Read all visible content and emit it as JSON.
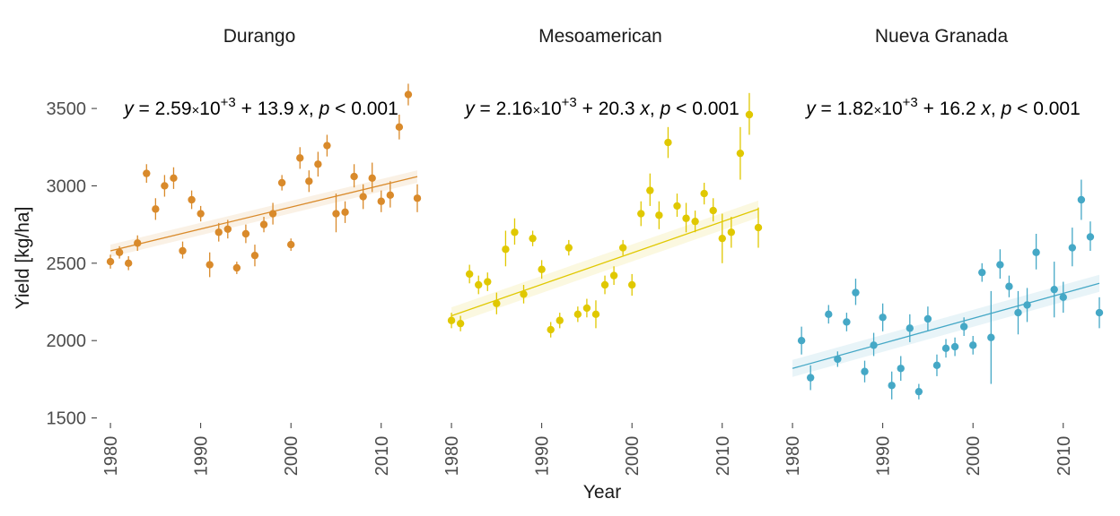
{
  "chart_data": {
    "type": "scatter",
    "layout": "faceted",
    "xlabel": "Year",
    "ylabel": "Yield [kg/ha]",
    "xlim": [
      1979,
      2014
    ],
    "ylim": [
      1480,
      3680
    ],
    "xticks": [
      1980,
      1990,
      2000,
      2010
    ],
    "yticks": [
      1500,
      2000,
      2500,
      3000,
      3500
    ],
    "grid": false,
    "error_bars": true,
    "regression": "linear with confidence band",
    "panels": [
      {
        "name": "Durango",
        "color": "#D98A2B",
        "equation": {
          "intercept_mantissa": "2.59",
          "exponent": "+3",
          "slope": "13.9",
          "p_text": "0.001"
        },
        "fit": {
          "x": [
            1980,
            2014
          ],
          "y": [
            2580,
            3060
          ],
          "band": 40
        },
        "points": [
          {
            "x": 1980,
            "y": 2510,
            "lo": 2465,
            "hi": 2555
          },
          {
            "x": 1981,
            "y": 2570,
            "lo": 2530,
            "hi": 2610
          },
          {
            "x": 1982,
            "y": 2500,
            "lo": 2455,
            "hi": 2545
          },
          {
            "x": 1983,
            "y": 2630,
            "lo": 2580,
            "hi": 2680
          },
          {
            "x": 1984,
            "y": 3080,
            "lo": 3020,
            "hi": 3140
          },
          {
            "x": 1985,
            "y": 2850,
            "lo": 2780,
            "hi": 2920
          },
          {
            "x": 1986,
            "y": 3000,
            "lo": 2930,
            "hi": 3070
          },
          {
            "x": 1987,
            "y": 3050,
            "lo": 2980,
            "hi": 3120
          },
          {
            "x": 1988,
            "y": 2580,
            "lo": 2530,
            "hi": 2640
          },
          {
            "x": 1989,
            "y": 2910,
            "lo": 2850,
            "hi": 2970
          },
          {
            "x": 1990,
            "y": 2820,
            "lo": 2770,
            "hi": 2870
          },
          {
            "x": 1991,
            "y": 2490,
            "lo": 2410,
            "hi": 2570
          },
          {
            "x": 1992,
            "y": 2700,
            "lo": 2640,
            "hi": 2760
          },
          {
            "x": 1993,
            "y": 2720,
            "lo": 2660,
            "hi": 2780
          },
          {
            "x": 1994,
            "y": 2470,
            "lo": 2430,
            "hi": 2510
          },
          {
            "x": 1995,
            "y": 2690,
            "lo": 2630,
            "hi": 2750
          },
          {
            "x": 1996,
            "y": 2550,
            "lo": 2480,
            "hi": 2620
          },
          {
            "x": 1997,
            "y": 2750,
            "lo": 2700,
            "hi": 2800
          },
          {
            "x": 1998,
            "y": 2820,
            "lo": 2750,
            "hi": 2890
          },
          {
            "x": 1999,
            "y": 3020,
            "lo": 2970,
            "hi": 3070
          },
          {
            "x": 2000,
            "y": 2620,
            "lo": 2580,
            "hi": 2660
          },
          {
            "x": 2001,
            "y": 3180,
            "lo": 3110,
            "hi": 3250
          },
          {
            "x": 2002,
            "y": 3030,
            "lo": 2960,
            "hi": 3100
          },
          {
            "x": 2003,
            "y": 3140,
            "lo": 3060,
            "hi": 3220
          },
          {
            "x": 2004,
            "y": 3260,
            "lo": 3190,
            "hi": 3330
          },
          {
            "x": 2005,
            "y": 2820,
            "lo": 2700,
            "hi": 2950
          },
          {
            "x": 2006,
            "y": 2830,
            "lo": 2760,
            "hi": 2900
          },
          {
            "x": 2007,
            "y": 3060,
            "lo": 2990,
            "hi": 3140
          },
          {
            "x": 2008,
            "y": 2930,
            "lo": 2850,
            "hi": 3010
          },
          {
            "x": 2009,
            "y": 3050,
            "lo": 2960,
            "hi": 3150
          },
          {
            "x": 2010,
            "y": 2900,
            "lo": 2830,
            "hi": 2970
          },
          {
            "x": 2011,
            "y": 2940,
            "lo": 2860,
            "hi": 3030
          },
          {
            "x": 2012,
            "y": 3380,
            "lo": 3300,
            "hi": 3460
          },
          {
            "x": 2013,
            "y": 3590,
            "lo": 3520,
            "hi": 3660
          },
          {
            "x": 2014,
            "y": 2920,
            "lo": 2830,
            "hi": 3010
          }
        ]
      },
      {
        "name": "Mesoamerican",
        "color": "#E0C800",
        "equation": {
          "intercept_mantissa": "2.16",
          "exponent": "+3",
          "slope": "20.3",
          "p_text": "0.001"
        },
        "fit": {
          "x": [
            1980,
            2014
          ],
          "y": [
            2160,
            2850
          ],
          "band": 55
        },
        "points": [
          {
            "x": 1980,
            "y": 2130,
            "lo": 2080,
            "hi": 2180
          },
          {
            "x": 1981,
            "y": 2110,
            "lo": 2060,
            "hi": 2160
          },
          {
            "x": 1982,
            "y": 2430,
            "lo": 2370,
            "hi": 2490
          },
          {
            "x": 1983,
            "y": 2360,
            "lo": 2300,
            "hi": 2420
          },
          {
            "x": 1984,
            "y": 2380,
            "lo": 2320,
            "hi": 2440
          },
          {
            "x": 1985,
            "y": 2240,
            "lo": 2170,
            "hi": 2310
          },
          {
            "x": 1986,
            "y": 2590,
            "lo": 2480,
            "hi": 2710
          },
          {
            "x": 1987,
            "y": 2700,
            "lo": 2620,
            "hi": 2790
          },
          {
            "x": 1988,
            "y": 2300,
            "lo": 2240,
            "hi": 2360
          },
          {
            "x": 1989,
            "y": 2660,
            "lo": 2610,
            "hi": 2710
          },
          {
            "x": 1990,
            "y": 2460,
            "lo": 2400,
            "hi": 2520
          },
          {
            "x": 1991,
            "y": 2070,
            "lo": 2020,
            "hi": 2120
          },
          {
            "x": 1992,
            "y": 2130,
            "lo": 2080,
            "hi": 2180
          },
          {
            "x": 1993,
            "y": 2600,
            "lo": 2550,
            "hi": 2650
          },
          {
            "x": 1994,
            "y": 2170,
            "lo": 2120,
            "hi": 2220
          },
          {
            "x": 1995,
            "y": 2210,
            "lo": 2150,
            "hi": 2270
          },
          {
            "x": 1996,
            "y": 2170,
            "lo": 2080,
            "hi": 2260
          },
          {
            "x": 1997,
            "y": 2360,
            "lo": 2300,
            "hi": 2420
          },
          {
            "x": 1998,
            "y": 2420,
            "lo": 2360,
            "hi": 2480
          },
          {
            "x": 1999,
            "y": 2600,
            "lo": 2550,
            "hi": 2650
          },
          {
            "x": 2000,
            "y": 2360,
            "lo": 2290,
            "hi": 2430
          },
          {
            "x": 2001,
            "y": 2820,
            "lo": 2740,
            "hi": 2900
          },
          {
            "x": 2002,
            "y": 2970,
            "lo": 2870,
            "hi": 3080
          },
          {
            "x": 2003,
            "y": 2810,
            "lo": 2720,
            "hi": 2900
          },
          {
            "x": 2004,
            "y": 3280,
            "lo": 3180,
            "hi": 3380
          },
          {
            "x": 2005,
            "y": 2870,
            "lo": 2800,
            "hi": 2950
          },
          {
            "x": 2006,
            "y": 2790,
            "lo": 2700,
            "hi": 2890
          },
          {
            "x": 2007,
            "y": 2770,
            "lo": 2700,
            "hi": 2840
          },
          {
            "x": 2008,
            "y": 2950,
            "lo": 2880,
            "hi": 3020
          },
          {
            "x": 2009,
            "y": 2840,
            "lo": 2770,
            "hi": 2920
          },
          {
            "x": 2010,
            "y": 2660,
            "lo": 2500,
            "hi": 2820
          },
          {
            "x": 2011,
            "y": 2700,
            "lo": 2600,
            "hi": 2800
          },
          {
            "x": 2012,
            "y": 3210,
            "lo": 3040,
            "hi": 3380
          },
          {
            "x": 2013,
            "y": 3460,
            "lo": 3330,
            "hi": 3600
          },
          {
            "x": 2014,
            "y": 2730,
            "lo": 2600,
            "hi": 2860
          }
        ]
      },
      {
        "name": "Nueva Granada",
        "color": "#45A8C6",
        "equation": {
          "intercept_mantissa": "1.82",
          "exponent": "+3",
          "slope": "16.2",
          "p_text": "0.001"
        },
        "fit": {
          "x": [
            1980,
            2014
          ],
          "y": [
            1820,
            2370
          ],
          "band": 55
        },
        "points": [
          {
            "x": 1981,
            "y": 2000,
            "lo": 1910,
            "hi": 2090
          },
          {
            "x": 1982,
            "y": 1760,
            "lo": 1680,
            "hi": 1840
          },
          {
            "x": 1984,
            "y": 2170,
            "lo": 2110,
            "hi": 2230
          },
          {
            "x": 1985,
            "y": 1880,
            "lo": 1830,
            "hi": 1930
          },
          {
            "x": 1986,
            "y": 2120,
            "lo": 2060,
            "hi": 2180
          },
          {
            "x": 1987,
            "y": 2310,
            "lo": 2230,
            "hi": 2400
          },
          {
            "x": 1988,
            "y": 1800,
            "lo": 1730,
            "hi": 1870
          },
          {
            "x": 1989,
            "y": 1970,
            "lo": 1900,
            "hi": 2050
          },
          {
            "x": 1990,
            "y": 2150,
            "lo": 2060,
            "hi": 2240
          },
          {
            "x": 1991,
            "y": 1710,
            "lo": 1620,
            "hi": 1800
          },
          {
            "x": 1992,
            "y": 1820,
            "lo": 1740,
            "hi": 1900
          },
          {
            "x": 1993,
            "y": 2080,
            "lo": 1990,
            "hi": 2170
          },
          {
            "x": 1994,
            "y": 1670,
            "lo": 1620,
            "hi": 1720
          },
          {
            "x": 1995,
            "y": 2140,
            "lo": 2060,
            "hi": 2220
          },
          {
            "x": 1996,
            "y": 1840,
            "lo": 1770,
            "hi": 1910
          },
          {
            "x": 1997,
            "y": 1950,
            "lo": 1890,
            "hi": 2010
          },
          {
            "x": 1998,
            "y": 1960,
            "lo": 1900,
            "hi": 2020
          },
          {
            "x": 1999,
            "y": 2090,
            "lo": 2030,
            "hi": 2150
          },
          {
            "x": 2000,
            "y": 1970,
            "lo": 1910,
            "hi": 2030
          },
          {
            "x": 2001,
            "y": 2440,
            "lo": 2380,
            "hi": 2500
          },
          {
            "x": 2002,
            "y": 2020,
            "lo": 1720,
            "hi": 2320
          },
          {
            "x": 2003,
            "y": 2490,
            "lo": 2400,
            "hi": 2590
          },
          {
            "x": 2004,
            "y": 2350,
            "lo": 2280,
            "hi": 2420
          },
          {
            "x": 2005,
            "y": 2180,
            "lo": 2040,
            "hi": 2320
          },
          {
            "x": 2006,
            "y": 2230,
            "lo": 2120,
            "hi": 2340
          },
          {
            "x": 2007,
            "y": 2570,
            "lo": 2460,
            "hi": 2690
          },
          {
            "x": 2009,
            "y": 2330,
            "lo": 2150,
            "hi": 2510
          },
          {
            "x": 2010,
            "y": 2280,
            "lo": 2180,
            "hi": 2380
          },
          {
            "x": 2011,
            "y": 2600,
            "lo": 2480,
            "hi": 2730
          },
          {
            "x": 2012,
            "y": 2910,
            "lo": 2780,
            "hi": 3040
          },
          {
            "x": 2013,
            "y": 2670,
            "lo": 2580,
            "hi": 2770
          },
          {
            "x": 2014,
            "y": 2180,
            "lo": 2080,
            "hi": 2280
          }
        ]
      }
    ]
  }
}
